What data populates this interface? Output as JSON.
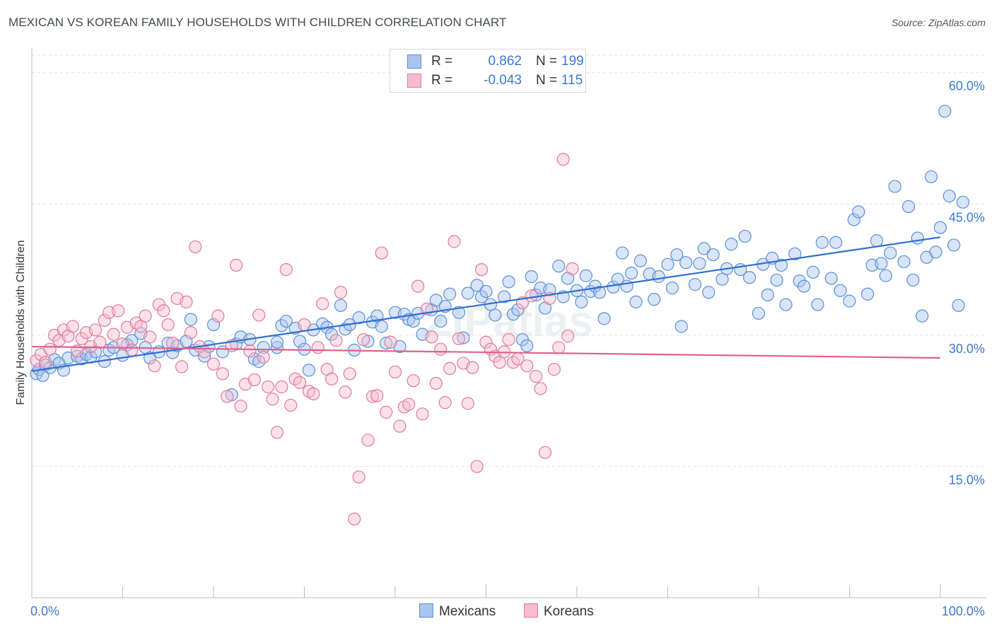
{
  "title": "MEXICAN VS KOREAN FAMILY HOUSEHOLDS WITH CHILDREN CORRELATION CHART",
  "source": "Source: ZipAtlas.com",
  "watermark": "ZIPatlas",
  "legend": {
    "rows": [
      {
        "r_label": "R =",
        "r_value": "0.862",
        "n_label": "N =",
        "n_value": "199",
        "color": "#a9c4ee",
        "border": "#5b8fd6"
      },
      {
        "r_label": "R =",
        "r_value": "-0.043",
        "n_label": "N =",
        "n_value": "115",
        "color": "#f6bccd",
        "border": "#e07a9c"
      }
    ]
  },
  "bottom_legend": [
    {
      "label": "Mexicans",
      "color": "#a9c4ee",
      "border": "#5b8fd6"
    },
    {
      "label": "Koreans",
      "color": "#f6bccd",
      "border": "#e07a9c"
    }
  ],
  "chart_data": {
    "type": "scatter",
    "title": "MEXICAN VS KOREAN FAMILY HOUSEHOLDS WITH CHILDREN CORRELATION CHART",
    "xlabel": "",
    "ylabel": "Family Households with Children",
    "xlim": [
      0,
      100
    ],
    "ylim": [
      0,
      62
    ],
    "x_tick_labels": [
      "0.0%",
      "100.0%"
    ],
    "y_ticks": [
      15,
      30,
      45,
      60
    ],
    "y_tick_labels": [
      "15.0%",
      "30.0%",
      "45.0%",
      "60.0%"
    ],
    "grid": true,
    "legend_position": "top-center",
    "series": [
      {
        "name": "Mexicans",
        "color": "#5b8fd6",
        "fill": "#a9c4ee",
        "trend": {
          "x": [
            0,
            100
          ],
          "y": [
            25.9,
            41.2
          ],
          "color": "#2f6fd1"
        },
        "points": [
          [
            0.5,
            25.6
          ],
          [
            0.8,
            26.1
          ],
          [
            1.2,
            25.4
          ],
          [
            1.5,
            26.6
          ],
          [
            2,
            26.3
          ],
          [
            2.5,
            27.2
          ],
          [
            3,
            26.8
          ],
          [
            3.5,
            26.0
          ],
          [
            4,
            27.4
          ],
          [
            5,
            27.6
          ],
          [
            5.5,
            27.3
          ],
          [
            6,
            27.8
          ],
          [
            6.5,
            27.5
          ],
          [
            7,
            28.1
          ],
          [
            8,
            27.0
          ],
          [
            8.5,
            28.3
          ],
          [
            9,
            28.6
          ],
          [
            10,
            27.7
          ],
          [
            10.5,
            28.9
          ],
          [
            11,
            29.4
          ],
          [
            12,
            30.2
          ],
          [
            12.5,
            28.6
          ],
          [
            13,
            27.4
          ],
          [
            14,
            28.1
          ],
          [
            15,
            29.1
          ],
          [
            15.5,
            28.0
          ],
          [
            16,
            28.8
          ],
          [
            17,
            29.3
          ],
          [
            17.5,
            31.8
          ],
          [
            18,
            28.3
          ],
          [
            19,
            27.6
          ],
          [
            19.5,
            28.7
          ],
          [
            20,
            31.2
          ],
          [
            21,
            28.1
          ],
          [
            22,
            23.2
          ],
          [
            22.5,
            29.0
          ],
          [
            23,
            29.8
          ],
          [
            24,
            29.5
          ],
          [
            24.5,
            27.3
          ],
          [
            25,
            27.0
          ],
          [
            25.5,
            28.6
          ],
          [
            27,
            28.6
          ],
          [
            27,
            29.2
          ],
          [
            27.5,
            31.1
          ],
          [
            28,
            31.6
          ],
          [
            29,
            30.8
          ],
          [
            29.5,
            29.3
          ],
          [
            30,
            28.4
          ],
          [
            30.5,
            26.0
          ],
          [
            31,
            30.6
          ],
          [
            32,
            31.3
          ],
          [
            32.5,
            30.9
          ],
          [
            33,
            30.1
          ],
          [
            34,
            33.4
          ],
          [
            34.5,
            30.7
          ],
          [
            35,
            31.2
          ],
          [
            35.5,
            28.3
          ],
          [
            36,
            32.0
          ],
          [
            37,
            29.3
          ],
          [
            37.5,
            31.5
          ],
          [
            38,
            32.2
          ],
          [
            38.5,
            31.0
          ],
          [
            39,
            29.1
          ],
          [
            40,
            32.6
          ],
          [
            40.5,
            28.7
          ],
          [
            41,
            32.4
          ],
          [
            41.5,
            31.8
          ],
          [
            42,
            31.6
          ],
          [
            42.5,
            32.5
          ],
          [
            43,
            30.1
          ],
          [
            44,
            32.9
          ],
          [
            44.5,
            34.0
          ],
          [
            45,
            31.6
          ],
          [
            45.5,
            33.3
          ],
          [
            46,
            34.7
          ],
          [
            47,
            32.6
          ],
          [
            47.5,
            29.7
          ],
          [
            48,
            34.8
          ],
          [
            49,
            35.7
          ],
          [
            49.5,
            34.4
          ],
          [
            50,
            35.0
          ],
          [
            50.5,
            33.5
          ],
          [
            51,
            32.3
          ],
          [
            52,
            34.4
          ],
          [
            52.5,
            36.1
          ],
          [
            53,
            32.4
          ],
          [
            53.5,
            32.9
          ],
          [
            54,
            29.5
          ],
          [
            54.5,
            28.8
          ],
          [
            55,
            36.7
          ],
          [
            55.5,
            34.6
          ],
          [
            56,
            35.4
          ],
          [
            56.5,
            33.1
          ],
          [
            57,
            35.2
          ],
          [
            58,
            37.9
          ],
          [
            58.5,
            34.4
          ],
          [
            59,
            36.5
          ],
          [
            60,
            35.1
          ],
          [
            60.5,
            33.8
          ],
          [
            61,
            36.8
          ],
          [
            61.5,
            35.0
          ],
          [
            62,
            35.6
          ],
          [
            62.5,
            34.9
          ],
          [
            63,
            31.9
          ],
          [
            64,
            35.5
          ],
          [
            64.5,
            36.4
          ],
          [
            65,
            39.4
          ],
          [
            65.5,
            35.6
          ],
          [
            66,
            37.1
          ],
          [
            66.5,
            33.8
          ],
          [
            67,
            38.5
          ],
          [
            68,
            37.0
          ],
          [
            68.5,
            34.1
          ],
          [
            69,
            36.7
          ],
          [
            70,
            38.1
          ],
          [
            70.5,
            35.4
          ],
          [
            71,
            39.2
          ],
          [
            71.5,
            31.0
          ],
          [
            72,
            38.3
          ],
          [
            73,
            35.8
          ],
          [
            73.5,
            38.2
          ],
          [
            74,
            39.9
          ],
          [
            74.5,
            34.9
          ],
          [
            75,
            39.2
          ],
          [
            76,
            36.4
          ],
          [
            76.5,
            37.6
          ],
          [
            77,
            40.4
          ],
          [
            78,
            37.5
          ],
          [
            78.5,
            41.3
          ],
          [
            79,
            36.6
          ],
          [
            80,
            32.5
          ],
          [
            80.5,
            38.1
          ],
          [
            81,
            34.6
          ],
          [
            81.5,
            38.8
          ],
          [
            82,
            36.3
          ],
          [
            82.5,
            38.0
          ],
          [
            83,
            33.5
          ],
          [
            84,
            39.3
          ],
          [
            84.5,
            36.2
          ],
          [
            85,
            35.6
          ],
          [
            86,
            37.2
          ],
          [
            86.5,
            33.5
          ],
          [
            87,
            40.6
          ],
          [
            88,
            36.5
          ],
          [
            88.5,
            40.6
          ],
          [
            89,
            35.1
          ],
          [
            90,
            33.9
          ],
          [
            90.5,
            43.2
          ],
          [
            91,
            44.1
          ],
          [
            92,
            34.7
          ],
          [
            92.5,
            38.0
          ],
          [
            93,
            40.8
          ],
          [
            93.5,
            38.2
          ],
          [
            94,
            36.8
          ],
          [
            94.5,
            39.4
          ],
          [
            95,
            47.0
          ],
          [
            96,
            38.4
          ],
          [
            96.5,
            44.7
          ],
          [
            97,
            36.3
          ],
          [
            97.5,
            41.1
          ],
          [
            98,
            32.2
          ],
          [
            98.5,
            38.9
          ],
          [
            99,
            48.1
          ],
          [
            99.5,
            39.5
          ],
          [
            100,
            42.3
          ],
          [
            100.5,
            55.6
          ],
          [
            101,
            45.9
          ],
          [
            101.5,
            40.3
          ],
          [
            102,
            33.4
          ],
          [
            102.5,
            45.2
          ]
        ]
      },
      {
        "name": "Koreans",
        "color": "#e07a9c",
        "fill": "#f6bccd",
        "trend": {
          "x": [
            0,
            100
          ],
          "y": [
            28.7,
            27.4
          ],
          "color": "#e0608c"
        },
        "points": [
          [
            0.5,
            27.1
          ],
          [
            1,
            27.8
          ],
          [
            1.5,
            26.9
          ],
          [
            2,
            28.4
          ],
          [
            2.5,
            30.0
          ],
          [
            3,
            29.4
          ],
          [
            3.5,
            30.6
          ],
          [
            4,
            29.9
          ],
          [
            4.5,
            31.0
          ],
          [
            5,
            28.2
          ],
          [
            5.5,
            29.6
          ],
          [
            6,
            30.3
          ],
          [
            6.5,
            28.7
          ],
          [
            7,
            30.6
          ],
          [
            7.5,
            29.2
          ],
          [
            8,
            31.7
          ],
          [
            8.5,
            32.6
          ],
          [
            9,
            30.1
          ],
          [
            9.5,
            32.8
          ],
          [
            10,
            29.0
          ],
          [
            10.5,
            30.9
          ],
          [
            11,
            28.3
          ],
          [
            11.5,
            31.4
          ],
          [
            12,
            31.0
          ],
          [
            12.5,
            32.2
          ],
          [
            13,
            29.8
          ],
          [
            13.5,
            26.5
          ],
          [
            14,
            33.5
          ],
          [
            14.5,
            32.8
          ],
          [
            15,
            31.2
          ],
          [
            15.5,
            29.1
          ],
          [
            16,
            34.2
          ],
          [
            16.5,
            26.4
          ],
          [
            17,
            33.8
          ],
          [
            17.5,
            30.3
          ],
          [
            18,
            40.1
          ],
          [
            18.5,
            28.7
          ],
          [
            19,
            28.1
          ],
          [
            20,
            26.7
          ],
          [
            20.5,
            32.2
          ],
          [
            21,
            25.6
          ],
          [
            21.5,
            23.0
          ],
          [
            22,
            28.8
          ],
          [
            22.5,
            38.0
          ],
          [
            23,
            21.9
          ],
          [
            23.5,
            24.4
          ],
          [
            24,
            28.2
          ],
          [
            24.5,
            24.9
          ],
          [
            25,
            32.3
          ],
          [
            25.5,
            27.5
          ],
          [
            26,
            24.1
          ],
          [
            26.5,
            22.7
          ],
          [
            27,
            18.9
          ],
          [
            27.5,
            24.1
          ],
          [
            28,
            37.5
          ],
          [
            28.5,
            22.0
          ],
          [
            29,
            25.0
          ],
          [
            29.5,
            24.6
          ],
          [
            30,
            31.2
          ],
          [
            30.5,
            23.6
          ],
          [
            31,
            23.3
          ],
          [
            31.5,
            28.6
          ],
          [
            32,
            33.6
          ],
          [
            32.5,
            26.1
          ],
          [
            33,
            25.0
          ],
          [
            33.5,
            29.4
          ],
          [
            34,
            34.9
          ],
          [
            34.5,
            23.5
          ],
          [
            35,
            25.6
          ],
          [
            35.5,
            9.0
          ],
          [
            36,
            13.8
          ],
          [
            36.5,
            29.5
          ],
          [
            37,
            18.0
          ],
          [
            37.5,
            23.0
          ],
          [
            38,
            23.1
          ],
          [
            38.5,
            39.4
          ],
          [
            39,
            21.2
          ],
          [
            39.5,
            29.2
          ],
          [
            40,
            25.8
          ],
          [
            40.5,
            19.6
          ],
          [
            41,
            21.8
          ],
          [
            41.5,
            22.1
          ],
          [
            42,
            24.8
          ],
          [
            42.5,
            35.6
          ],
          [
            43,
            21.0
          ],
          [
            43.5,
            33.0
          ],
          [
            44,
            29.8
          ],
          [
            44.5,
            24.5
          ],
          [
            45,
            28.4
          ],
          [
            45.5,
            22.3
          ],
          [
            46,
            26.2
          ],
          [
            46.5,
            40.7
          ],
          [
            47,
            29.6
          ],
          [
            47.5,
            26.8
          ],
          [
            48,
            22.2
          ],
          [
            48.5,
            26.3
          ],
          [
            49,
            15.0
          ],
          [
            49.5,
            37.5
          ],
          [
            50,
            29.2
          ],
          [
            50.5,
            28.4
          ],
          [
            51,
            27.6
          ],
          [
            51.5,
            26.9
          ],
          [
            52,
            28.1
          ],
          [
            52.5,
            29.5
          ],
          [
            53,
            26.9
          ],
          [
            53.5,
            27.3
          ],
          [
            54,
            33.7
          ],
          [
            54.5,
            26.5
          ],
          [
            55,
            34.5
          ],
          [
            55.5,
            25.3
          ],
          [
            56,
            23.9
          ],
          [
            56.5,
            16.6
          ],
          [
            57,
            34.2
          ],
          [
            57.5,
            26.1
          ],
          [
            58,
            28.6
          ],
          [
            58.5,
            50.1
          ],
          [
            59,
            29.9
          ],
          [
            59.5,
            37.6
          ]
        ]
      }
    ]
  }
}
